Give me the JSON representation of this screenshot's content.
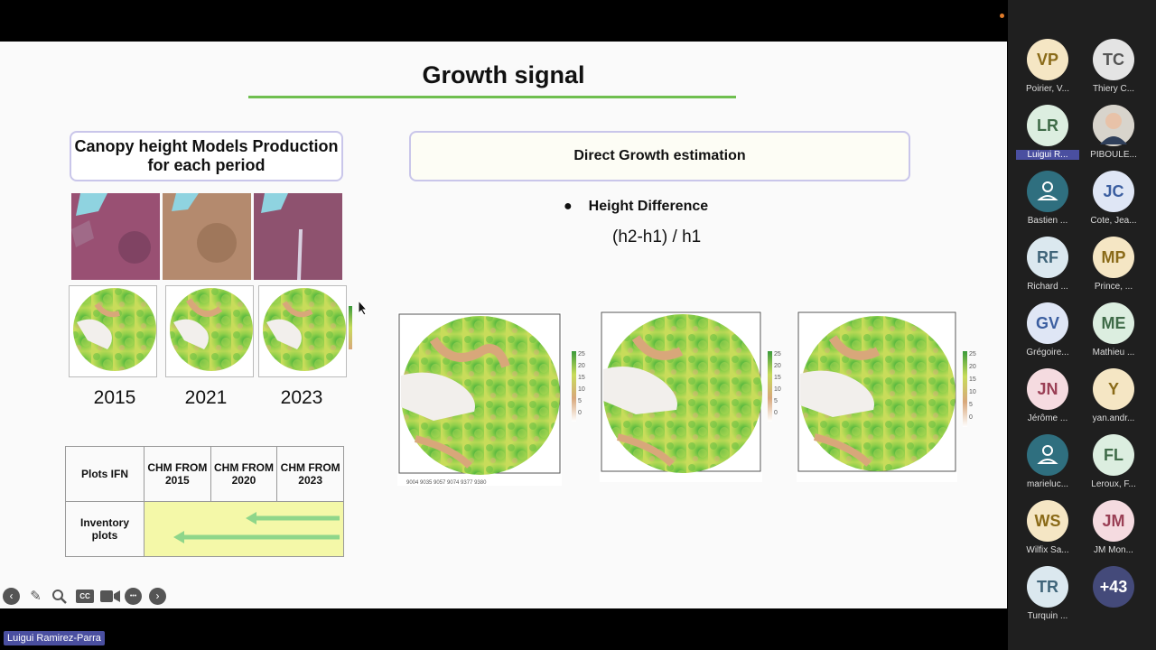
{
  "slide": {
    "title": "Growth signal",
    "box_left": "Canopy height Models Production for each period",
    "box_right": "Direct Growth estimation",
    "bullet": "Height Difference",
    "formula": "(h2-h1) / h1",
    "years": [
      "2015",
      "2021",
      "2023"
    ],
    "table": {
      "headers": [
        "Plots IFN",
        "CHM FROM 2015",
        "CHM FROM 2020",
        "CHM FROM 2023"
      ],
      "row_label": "Inventory plots"
    },
    "legend_ticks_1": [
      "25",
      "20",
      "15",
      "10",
      "5",
      "0"
    ],
    "legend_ticks_2": [
      "25",
      "20",
      "15",
      "10",
      "5",
      "0"
    ],
    "legend_ticks_3": [
      "25",
      "20",
      "15",
      "10",
      "5",
      "0"
    ]
  },
  "controls": [
    "back-icon",
    "pen-icon",
    "zoom-icon",
    "captions-icon",
    "camera-icon",
    "more-icon",
    "forward-icon"
  ],
  "controls_glyphs": {
    "cc": "CC",
    "more": "•••"
  },
  "participants": [
    {
      "initials": "VP",
      "name": "Poirier, V...",
      "bg": "#f5e6c4",
      "fg": "#8a6a18"
    },
    {
      "initials": "TC",
      "name": "Thiery C...",
      "bg": "#e4e4e4",
      "fg": "#555555"
    },
    {
      "initials": "LR",
      "name": "Luigui R...",
      "bg": "#dceee0",
      "fg": "#3f6b48",
      "highlight": true
    },
    {
      "initials": "",
      "name": "PIBOULE...",
      "bg": "#8a7f74",
      "fg": "#ffffff",
      "photo": true
    },
    {
      "initials": "",
      "name": "Bastien ...",
      "bg": "#2f6f7f",
      "fg": "#ffffff",
      "person": true
    },
    {
      "initials": "JC",
      "name": "Cote, Jea...",
      "bg": "#dfe6f5",
      "fg": "#3b5ea0"
    },
    {
      "initials": "RF",
      "name": "Richard ...",
      "bg": "#dbe8ef",
      "fg": "#3f6479"
    },
    {
      "initials": "MP",
      "name": "Prince, ...",
      "bg": "#f5e6c4",
      "fg": "#8a6a18"
    },
    {
      "initials": "GV",
      "name": "Grégoire...",
      "bg": "#dfe6f5",
      "fg": "#3b5ea0"
    },
    {
      "initials": "ME",
      "name": "Mathieu ...",
      "bg": "#dceee0",
      "fg": "#3f6b48"
    },
    {
      "initials": "JN",
      "name": "Jérôme ...",
      "bg": "#f5dbe0",
      "fg": "#9a3f55"
    },
    {
      "initials": "Y",
      "name": "yan.andr...",
      "bg": "#f5e6c4",
      "fg": "#8a6a18"
    },
    {
      "initials": "",
      "name": "marieluc...",
      "bg": "#2f6f7f",
      "fg": "#ffffff",
      "person": true
    },
    {
      "initials": "FL",
      "name": "Leroux, F...",
      "bg": "#dceee0",
      "fg": "#3f6b48"
    },
    {
      "initials": "WS",
      "name": "Wilfix Sa...",
      "bg": "#f5e6c4",
      "fg": "#8a6a18"
    },
    {
      "initials": "JM",
      "name": "JM Mon...",
      "bg": "#f5dbe0",
      "fg": "#9a3f55"
    },
    {
      "initials": "TR",
      "name": "Turquin ...",
      "bg": "#dbe8ef",
      "fg": "#3f6479"
    },
    {
      "initials": "+43",
      "name": "",
      "bg": "#444a7a",
      "fg": "#ffffff"
    }
  ],
  "presenter_label": "Luigui Ramirez-Parra",
  "colors": {
    "accent_green": "#6fbf4f",
    "name_tag": "#4a4fa0"
  }
}
